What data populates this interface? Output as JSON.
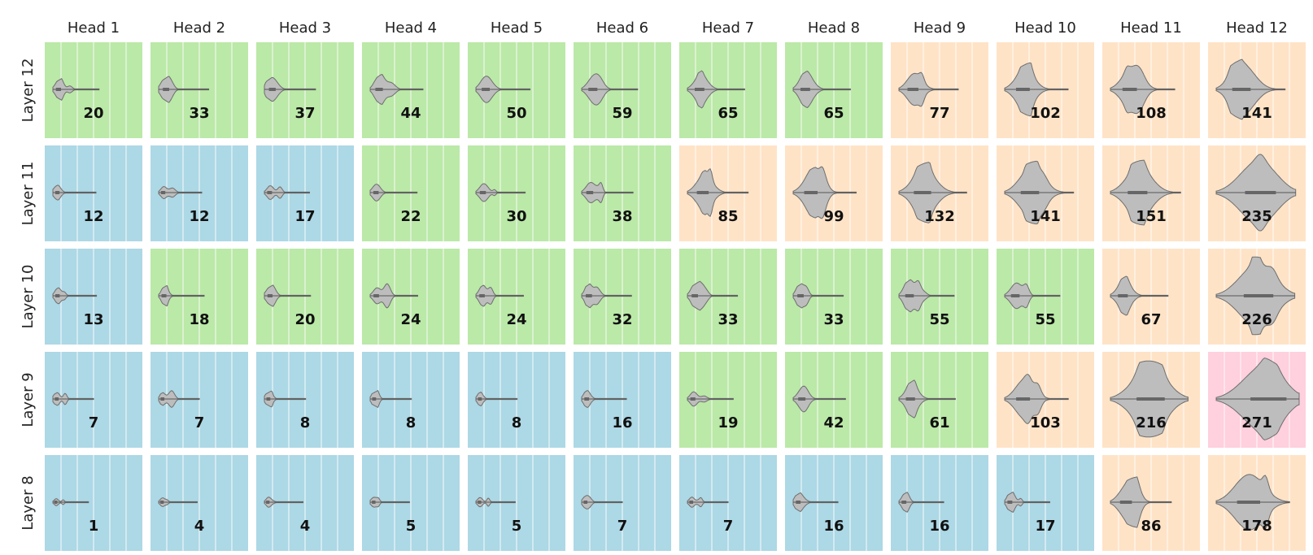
{
  "chart_data": {
    "type": "violin-grid",
    "columns": [
      "Head  1",
      "Head  2",
      "Head  3",
      "Head  4",
      "Head  5",
      "Head  6",
      "Head  7",
      "Head  8",
      "Head  9",
      "Head  10",
      "Head  11",
      "Head  12"
    ],
    "rows": [
      "Layer  12",
      "Layer  11",
      "Layer  10",
      "Layer  9",
      "Layer  8"
    ],
    "values": [
      [
        20,
        33,
        37,
        44,
        50,
        59,
        65,
        65,
        77,
        102,
        108,
        141
      ],
      [
        12,
        12,
        17,
        22,
        30,
        38,
        85,
        99,
        132,
        141,
        151,
        235
      ],
      [
        13,
        18,
        20,
        24,
        24,
        32,
        33,
        33,
        55,
        55,
        67,
        226
      ],
      [
        7,
        7,
        8,
        8,
        8,
        16,
        19,
        42,
        61,
        103,
        216,
        271
      ],
      [
        1,
        4,
        4,
        5,
        5,
        7,
        7,
        16,
        16,
        17,
        86,
        178
      ]
    ],
    "category_colors": {
      "blue": "#add8e6",
      "green": "#bbe9a8",
      "orange": "#ffe3c7",
      "pink": "#ffd0de"
    },
    "cell_categories": [
      [
        "green",
        "green",
        "green",
        "green",
        "green",
        "green",
        "green",
        "green",
        "orange",
        "orange",
        "orange",
        "orange"
      ],
      [
        "blue",
        "blue",
        "blue",
        "green",
        "green",
        "green",
        "orange",
        "orange",
        "orange",
        "orange",
        "orange",
        "orange"
      ],
      [
        "blue",
        "green",
        "green",
        "green",
        "green",
        "green",
        "green",
        "green",
        "green",
        "green",
        "orange",
        "orange"
      ],
      [
        "blue",
        "blue",
        "blue",
        "blue",
        "blue",
        "blue",
        "green",
        "green",
        "green",
        "orange",
        "orange",
        "pink"
      ],
      [
        "blue",
        "blue",
        "blue",
        "blue",
        "blue",
        "blue",
        "blue",
        "blue",
        "blue",
        "blue",
        "orange",
        "orange"
      ]
    ],
    "violin_color": "#bdbdbd",
    "grid": true,
    "legend": "none"
  }
}
